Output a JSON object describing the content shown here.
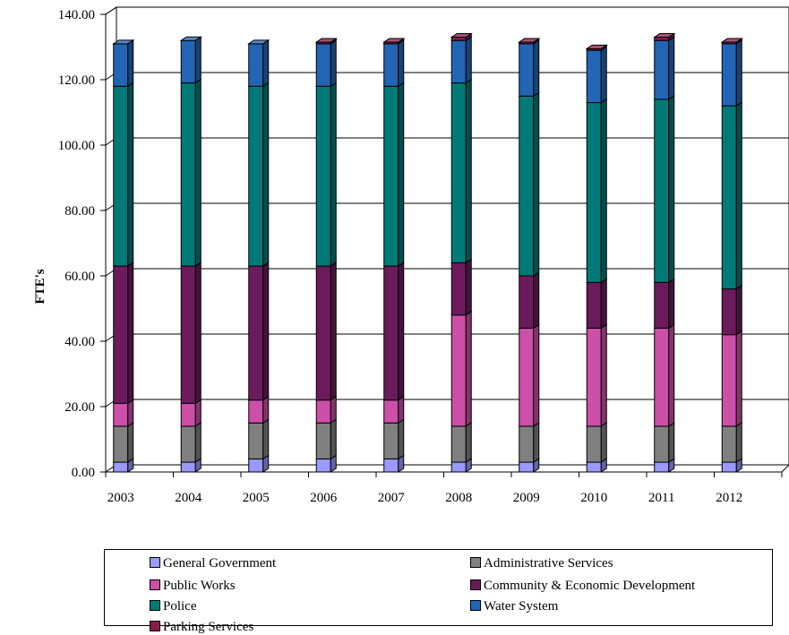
{
  "chart_data": {
    "type": "bar",
    "stacked": true,
    "ylabel": "FTE's",
    "xlabel": "",
    "ylim": [
      0,
      140
    ],
    "yticks": [
      "0.00",
      "20.00",
      "40.00",
      "60.00",
      "80.00",
      "100.00",
      "120.00",
      "140.00"
    ],
    "categories": [
      "2003",
      "2004",
      "2005",
      "2006",
      "2007",
      "2008",
      "2009",
      "2010",
      "2011",
      "2012"
    ],
    "grid": true,
    "legend_position": "bottom",
    "series": [
      {
        "name": "General Government",
        "color": "#9999ff",
        "values": [
          3,
          3,
          4,
          4,
          4,
          3,
          3,
          3,
          3,
          3
        ]
      },
      {
        "name": "Administrative Services",
        "color": "#808080",
        "values": [
          11,
          11,
          11,
          11,
          11,
          11,
          11,
          11,
          11,
          11
        ]
      },
      {
        "name": "Public Works",
        "color": "#cc4fa8",
        "values": [
          7,
          7,
          7,
          7,
          7,
          34,
          30,
          30,
          30,
          28
        ]
      },
      {
        "name": "Community & Economic Development",
        "color": "#6b1b5c",
        "values": [
          42,
          42,
          41,
          41,
          41,
          16,
          16,
          14,
          14,
          14
        ]
      },
      {
        "name": "Police",
        "color": "#007a78",
        "values": [
          55,
          56,
          55,
          55,
          55,
          55,
          55,
          55,
          56,
          56
        ]
      },
      {
        "name": "Water System",
        "color": "#2265b5",
        "values": [
          13,
          13,
          13,
          13,
          13,
          13,
          16,
          16,
          18,
          19
        ]
      },
      {
        "name": "Parking Services",
        "color": "#8b1a4a",
        "values": [
          0,
          0,
          0,
          0.5,
          0.5,
          1,
          0.5,
          0.5,
          1,
          0.5
        ]
      }
    ]
  }
}
